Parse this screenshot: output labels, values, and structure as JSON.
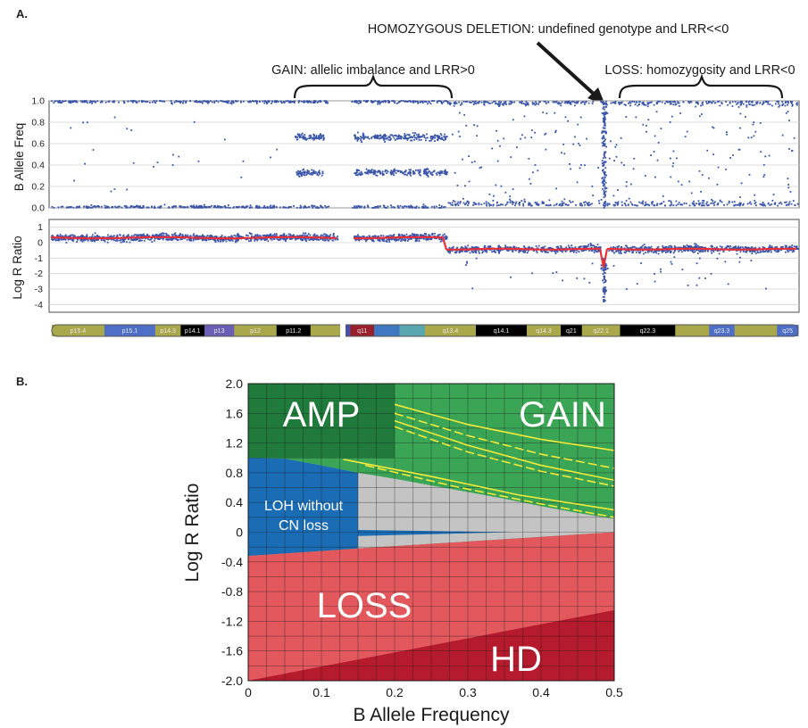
{
  "panels": {
    "a": "A.",
    "b": "B."
  },
  "annotations": {
    "gain": "GAIN: allelic imbalance and LRR>0",
    "hd": "HOMOZYGOUS DELETION: undefined genotype and LRR<<0",
    "loss": "LOSS: homozygosity and LRR<0"
  },
  "colors": {
    "points": "#3a55a8",
    "smooth": "#e8303a",
    "amp": "#1f7a3c",
    "gain": "#3aa655",
    "loh": "#1a6cb4",
    "normal": "#c4c4c4",
    "loss": "#e2585d",
    "hd": "#b51b2c",
    "boundary": "#f2ea3a"
  },
  "chart_data": [
    {
      "type": "scatter",
      "ylabel": "B Allele Freq",
      "yticks": [
        "0.0",
        "0.2",
        "0.4",
        "0.6",
        "0.8",
        "1.0"
      ],
      "ylim": [
        0,
        1
      ],
      "grid": true
    },
    {
      "type": "scatter",
      "ylabel": "Log R Ratio",
      "yticks": [
        "1",
        "0",
        "-1",
        "-2",
        "-3",
        "-4"
      ],
      "ylim": [
        -4.5,
        1.5
      ],
      "grid": true
    },
    {
      "type": "ideogram",
      "bands": [
        "p15.4",
        "p15.1",
        "p14.3",
        "p14.1",
        "p13",
        "p12",
        "p11.2",
        "q11",
        "q13.4",
        "q14.1",
        "q14.3",
        "q21",
        "q22.1",
        "q22.3",
        "q23.3",
        "q25"
      ]
    },
    {
      "type": "area",
      "xlabel": "B Allele Frequency",
      "ylabel": "Log R Ratio",
      "xlim": [
        0,
        0.5
      ],
      "ylim": [
        -2.0,
        2.0
      ],
      "xticks": [
        "0",
        "0.1",
        "0.2",
        "0.3",
        "0.4",
        "0.5"
      ],
      "yticks": [
        "2.0",
        "1.6",
        "1.2",
        "0.8",
        "0.4",
        "0",
        "-0.4",
        "-0.8",
        "-1.2",
        "-1.6",
        "-2.0"
      ],
      "grid": true,
      "regions": [
        {
          "name": "AMP",
          "lines": [
            "AMP"
          ]
        },
        {
          "name": "GAIN",
          "lines": [
            "GAIN"
          ]
        },
        {
          "name": "LOH without CN loss",
          "lines": [
            "LOH without",
            "CN loss"
          ]
        },
        {
          "name": "LOSS",
          "lines": [
            "LOSS"
          ]
        },
        {
          "name": "HD",
          "lines": [
            "HD"
          ]
        }
      ],
      "boundaries": {
        "loh_top": [
          [
            0,
            1.0
          ],
          [
            0.05,
            0.99
          ],
          [
            0.1,
            0.9
          ],
          [
            0.15,
            0.8
          ],
          [
            0.2,
            0.72
          ],
          [
            0.25,
            0.63
          ],
          [
            0.3,
            0.54
          ],
          [
            0.35,
            0.45
          ],
          [
            0.4,
            0.35
          ],
          [
            0.45,
            0.26
          ],
          [
            0.5,
            0.18
          ]
        ],
        "loss_top": [
          [
            0,
            -0.32
          ],
          [
            0.15,
            -0.22
          ],
          [
            0.5,
            0.0
          ]
        ],
        "hd_top": [
          [
            0,
            -2.0
          ],
          [
            0.5,
            -1.05
          ]
        ]
      }
    }
  ]
}
